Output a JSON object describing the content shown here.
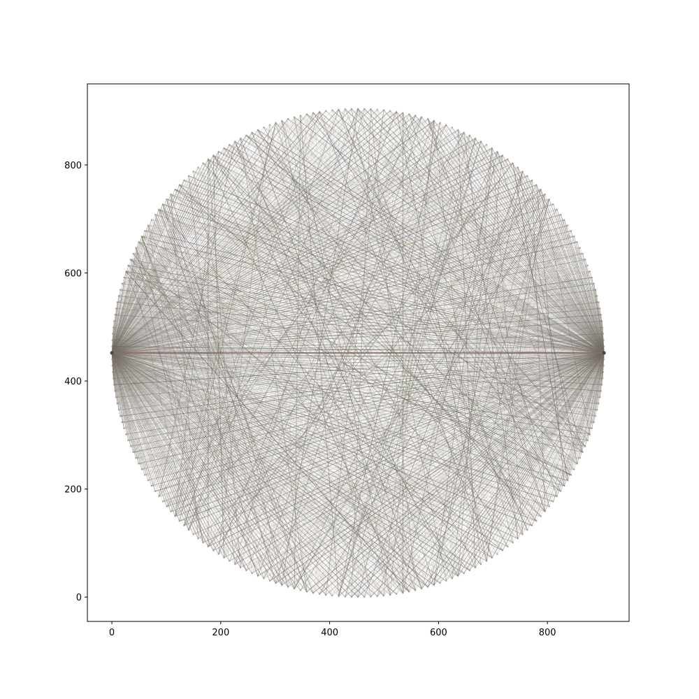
{
  "chart_data": {
    "type": "network",
    "title": "",
    "xlabel": "",
    "ylabel": "",
    "xlim": [
      -45,
      950
    ],
    "ylim": [
      -45,
      950
    ],
    "x_ticks": [
      0,
      200,
      400,
      600,
      800
    ],
    "y_ticks": [
      0,
      200,
      400,
      600,
      800
    ],
    "grid": false,
    "legend": "none",
    "layout": "circular",
    "circle_center": [
      452,
      452
    ],
    "circle_radius": 452,
    "node_count": 240,
    "hub_nodes": [
      {
        "x": 0,
        "y": 452
      },
      {
        "x": 904,
        "y": 452
      }
    ],
    "edge_colors": [
      "#5a5a46",
      "#7a6e66",
      "#8a7e7e",
      "#6e7a60",
      "#8c7c74",
      "#6a5e66"
    ],
    "faint_edge_colors": [
      "#d8c4bc",
      "#c6d0c2",
      "#c8c0cc",
      "#d4cab0",
      "#bcc8d2"
    ]
  }
}
